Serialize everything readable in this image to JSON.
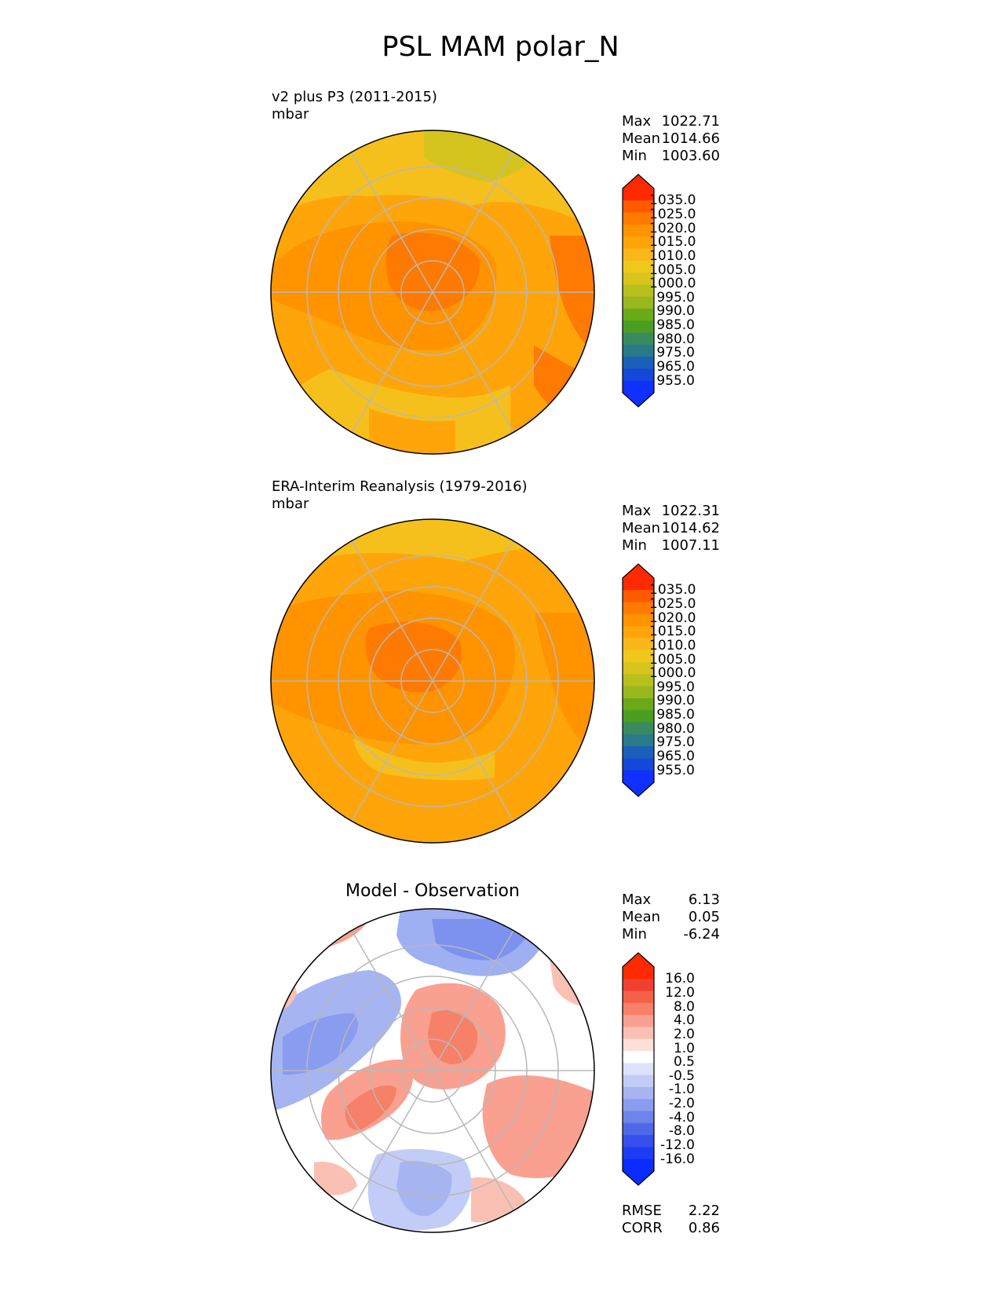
{
  "title": "PSL MAM polar_N",
  "panels": [
    {
      "id": "test",
      "title_line1": "v2 plus P3 (2011-2015)",
      "title_line2": "mbar",
      "stats": [
        {
          "label": "Max",
          "value": "1022.71"
        },
        {
          "label": "Mean",
          "value": "1014.66"
        },
        {
          "label": "Min",
          "value": "1003.60"
        }
      ],
      "colorbar": "psl"
    },
    {
      "id": "ref",
      "title_line1": "ERA-Interim Reanalysis (1979-2016)",
      "title_line2": "mbar",
      "stats": [
        {
          "label": "Max",
          "value": "1022.31"
        },
        {
          "label": "Mean",
          "value": "1014.62"
        },
        {
          "label": "Min",
          "value": "1007.11"
        }
      ],
      "colorbar": "psl"
    },
    {
      "id": "diff",
      "title_center": "Model - Observation",
      "stats": [
        {
          "label": "Max",
          "value": "6.13"
        },
        {
          "label": "Mean",
          "value": "0.05"
        },
        {
          "label": "Min",
          "value": "-6.24"
        }
      ],
      "colorbar": "diff",
      "metrics": [
        {
          "label": "RMSE",
          "value": "2.22"
        },
        {
          "label": "CORR",
          "value": "0.86"
        }
      ]
    }
  ],
  "colorbars": {
    "psl": {
      "labels": [
        "1035.0",
        "1025.0",
        "1020.0",
        "1015.0",
        "1010.0",
        "1005.0",
        "1000.0",
        "995.0",
        "990.0",
        "985.0",
        "980.0",
        "975.0",
        "965.0",
        "955.0"
      ],
      "colors": [
        "#ff2a00",
        "#ff5a00",
        "#ff7a00",
        "#ff9300",
        "#ffa50a",
        "#f9b81a",
        "#f0c81c",
        "#d8c41c",
        "#b8c01e",
        "#98b81e",
        "#6aaa18",
        "#4a9e20",
        "#3a8a60",
        "#2a7a8a",
        "#1a60b8",
        "#1448d8",
        "#1030ff"
      ],
      "upper_arrow": "#ff2a00",
      "lower_arrow": "#1030ff"
    },
    "diff": {
      "labels": [
        "16.0",
        "12.0",
        "8.0",
        "4.0",
        "2.0",
        "1.0",
        "0.5",
        "-0.5",
        "-1.0",
        "-2.0",
        "-4.0",
        "-8.0",
        "-12.0",
        "-16.0"
      ],
      "colors": [
        "#ff2a00",
        "#f04030",
        "#f56048",
        "#f78068",
        "#f9a090",
        "#fbc0b4",
        "#fde0da",
        "#ffffff",
        "#dde3fb",
        "#c2ccf6",
        "#a6b4f2",
        "#8a9cef",
        "#6e84ea",
        "#5068e8",
        "#3650ec",
        "#1e3cf4",
        "#0a2cff"
      ],
      "upper_arrow": "#ff2a00",
      "lower_arrow": "#0a2cff"
    }
  }
}
